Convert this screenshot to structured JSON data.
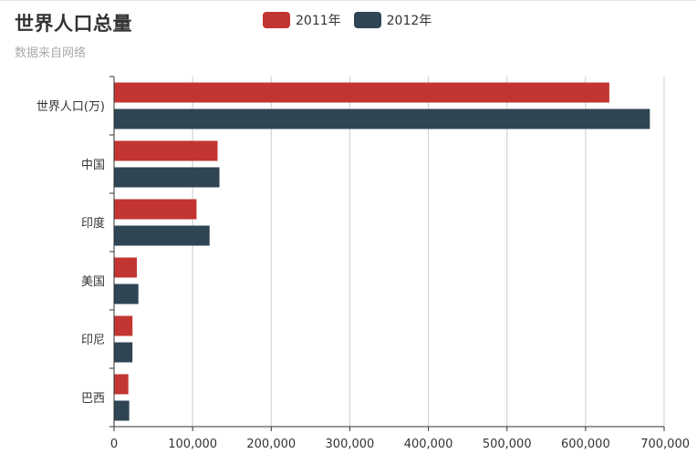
{
  "title": "世界人口总量",
  "subtitle": "数据来自网络",
  "colors": {
    "s2011": "#c23531",
    "s2012": "#2f4554",
    "grid": "#cccccc",
    "axis": "#333333"
  },
  "chart_data": {
    "type": "bar",
    "orientation": "horizontal",
    "title": "世界人口总量",
    "subtitle": "数据来自网络",
    "categories": [
      "世界人口(万)",
      "中国",
      "印度",
      "美国",
      "印尼",
      "巴西"
    ],
    "series": [
      {
        "name": "2011年",
        "values": [
          630230,
          131744,
          104970,
          29034,
          23489,
          18203
        ]
      },
      {
        "name": "2012年",
        "values": [
          681807,
          134141,
          121594,
          31000,
          23438,
          19325
        ]
      }
    ],
    "xlim": [
      0,
      700000
    ],
    "xticks": [
      "0",
      "100,000",
      "200,000",
      "300,000",
      "400,000",
      "500,000",
      "600,000",
      "700,000"
    ],
    "grid": "vertical",
    "legend": "top-center"
  }
}
